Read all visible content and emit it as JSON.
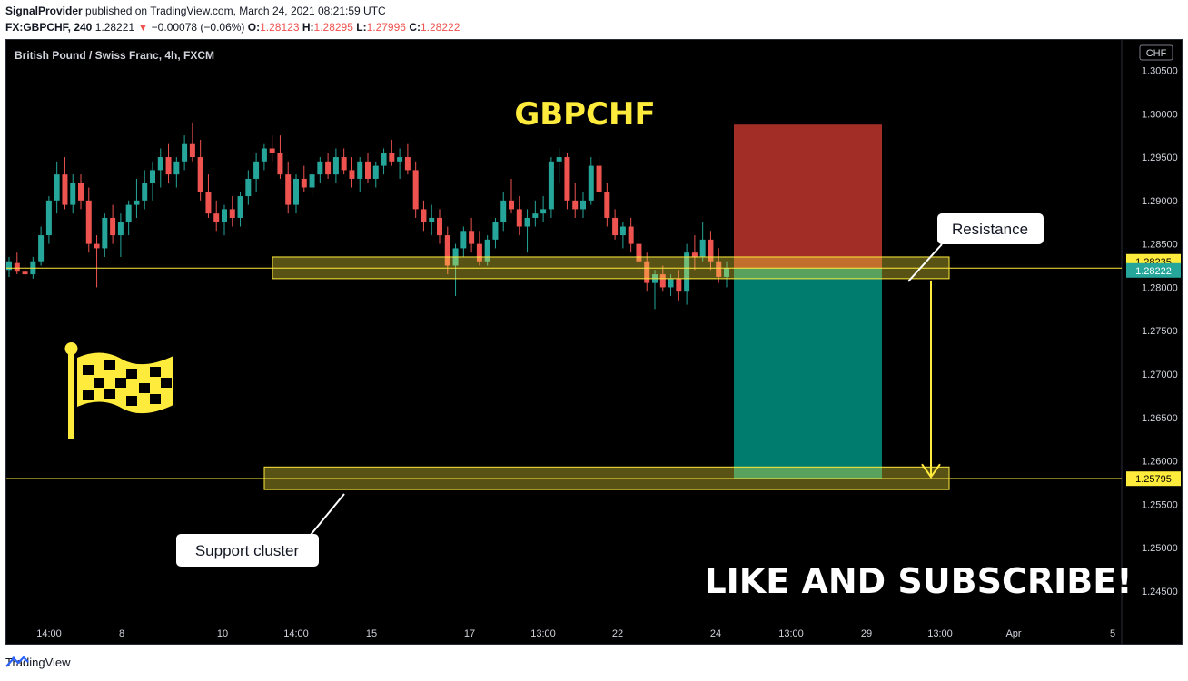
{
  "header": {
    "author": "SignalProvider",
    "published_text": "published on TradingView.com, March 24, 2021 08:21:59 UTC",
    "symbol": "FX:GBPCHF, 240",
    "last": "1.28221",
    "change_arrow": "▼",
    "change": "−0.00078 (−0.06%)",
    "o_label": "O:",
    "o_value": "1.28123",
    "h_label": "H:",
    "h_value": "1.28295",
    "l_label": "L:",
    "l_value": "1.27996",
    "c_label": "C:",
    "c_value": "1.28222"
  },
  "chart_data": {
    "type": "candlestick",
    "instrument_label": "British Pound / Swiss Franc, 4h, FXCM",
    "title": "GBPCHF",
    "currency_badge": "CHF",
    "ylim": [
      1.2405,
      1.3085
    ],
    "y_ticks": [
      "1.30500",
      "1.30000",
      "1.29500",
      "1.29000",
      "1.28500",
      "1.28000",
      "1.27500",
      "1.27000",
      "1.26500",
      "1.26000",
      "1.25500",
      "1.25000",
      "1.24500"
    ],
    "x_ticks": [
      "14:00",
      "8",
      "10",
      "14:00",
      "15",
      "17",
      "13:00",
      "22",
      "24",
      "13:00",
      "29",
      "13:00",
      "Apr",
      "5"
    ],
    "price_labels": {
      "resistance_top": "1.28235",
      "current": "1.28222",
      "target": "1.25795"
    },
    "candles_ohlc": [
      [
        1.282,
        1.2835,
        1.2812,
        1.283
      ],
      [
        1.2828,
        1.284,
        1.2815,
        1.2818
      ],
      [
        1.2818,
        1.283,
        1.2808,
        1.2815
      ],
      [
        1.2815,
        1.2835,
        1.281,
        1.283
      ],
      [
        1.283,
        1.287,
        1.2825,
        1.286
      ],
      [
        1.286,
        1.2905,
        1.285,
        1.29
      ],
      [
        1.29,
        1.2945,
        1.2885,
        1.293
      ],
      [
        1.293,
        1.295,
        1.289,
        1.2895
      ],
      [
        1.2895,
        1.293,
        1.2885,
        1.292
      ],
      [
        1.292,
        1.293,
        1.289,
        1.29
      ],
      [
        1.29,
        1.2915,
        1.284,
        1.285
      ],
      [
        1.285,
        1.286,
        1.28,
        1.2845
      ],
      [
        1.2845,
        1.2885,
        1.2835,
        1.288
      ],
      [
        1.288,
        1.2895,
        1.285,
        1.286
      ],
      [
        1.286,
        1.2885,
        1.2835,
        1.2875
      ],
      [
        1.2875,
        1.29,
        1.286,
        1.2895
      ],
      [
        1.2895,
        1.2925,
        1.288,
        1.29
      ],
      [
        1.29,
        1.2935,
        1.289,
        1.292
      ],
      [
        1.292,
        1.2945,
        1.29,
        1.2935
      ],
      [
        1.2935,
        1.296,
        1.2915,
        1.295
      ],
      [
        1.295,
        1.2965,
        1.292,
        1.293
      ],
      [
        1.293,
        1.295,
        1.2915,
        1.2945
      ],
      [
        1.2945,
        1.2975,
        1.2935,
        1.2965
      ],
      [
        1.2965,
        1.299,
        1.2945,
        1.295
      ],
      [
        1.295,
        1.297,
        1.29,
        1.291
      ],
      [
        1.291,
        1.293,
        1.288,
        1.2885
      ],
      [
        1.2885,
        1.29,
        1.2865,
        1.2875
      ],
      [
        1.2875,
        1.2895,
        1.286,
        1.289
      ],
      [
        1.289,
        1.2905,
        1.287,
        1.288
      ],
      [
        1.288,
        1.291,
        1.287,
        1.2905
      ],
      [
        1.2905,
        1.2935,
        1.2895,
        1.2925
      ],
      [
        1.2925,
        1.2955,
        1.291,
        1.2945
      ],
      [
        1.2945,
        1.2965,
        1.2935,
        1.296
      ],
      [
        1.296,
        1.2975,
        1.2945,
        1.2955
      ],
      [
        1.2955,
        1.2975,
        1.2925,
        1.293
      ],
      [
        1.293,
        1.2945,
        1.2885,
        1.2895
      ],
      [
        1.2895,
        1.293,
        1.2885,
        1.2925
      ],
      [
        1.2925,
        1.294,
        1.291,
        1.2915
      ],
      [
        1.2915,
        1.2935,
        1.2905,
        1.293
      ],
      [
        1.293,
        1.295,
        1.292,
        1.2945
      ],
      [
        1.2945,
        1.2955,
        1.2925,
        1.293
      ],
      [
        1.293,
        1.296,
        1.292,
        1.295
      ],
      [
        1.295,
        1.296,
        1.293,
        1.2935
      ],
      [
        1.2935,
        1.295,
        1.2915,
        1.2925
      ],
      [
        1.2925,
        1.295,
        1.291,
        1.2945
      ],
      [
        1.2945,
        1.2955,
        1.292,
        1.2925
      ],
      [
        1.2925,
        1.2945,
        1.2915,
        1.294
      ],
      [
        1.294,
        1.296,
        1.293,
        1.2955
      ],
      [
        1.2955,
        1.297,
        1.294,
        1.2945
      ],
      [
        1.2945,
        1.296,
        1.2925,
        1.295
      ],
      [
        1.295,
        1.2965,
        1.293,
        1.2935
      ],
      [
        1.2935,
        1.2945,
        1.288,
        1.289
      ],
      [
        1.289,
        1.29,
        1.2865,
        1.2875
      ],
      [
        1.2875,
        1.2895,
        1.286,
        1.288
      ],
      [
        1.288,
        1.289,
        1.285,
        1.286
      ],
      [
        1.286,
        1.287,
        1.2815,
        1.2825
      ],
      [
        1.2825,
        1.285,
        1.279,
        1.2845
      ],
      [
        1.2845,
        1.287,
        1.2835,
        1.2865
      ],
      [
        1.2865,
        1.288,
        1.284,
        1.285
      ],
      [
        1.285,
        1.2865,
        1.2825,
        1.283
      ],
      [
        1.283,
        1.286,
        1.2825,
        1.2855
      ],
      [
        1.2855,
        1.288,
        1.2845,
        1.2875
      ],
      [
        1.2875,
        1.291,
        1.2865,
        1.29
      ],
      [
        1.29,
        1.2925,
        1.2885,
        1.289
      ],
      [
        1.289,
        1.2905,
        1.286,
        1.287
      ],
      [
        1.287,
        1.289,
        1.284,
        1.288
      ],
      [
        1.288,
        1.29,
        1.287,
        1.2885
      ],
      [
        1.2885,
        1.2905,
        1.2875,
        1.289
      ],
      [
        1.289,
        1.295,
        1.288,
        1.2945
      ],
      [
        1.2945,
        1.296,
        1.292,
        1.295
      ],
      [
        1.295,
        1.2955,
        1.289,
        1.29
      ],
      [
        1.29,
        1.292,
        1.288,
        1.289
      ],
      [
        1.289,
        1.291,
        1.288,
        1.29
      ],
      [
        1.29,
        1.295,
        1.2895,
        1.294
      ],
      [
        1.294,
        1.295,
        1.29,
        1.291
      ],
      [
        1.291,
        1.292,
        1.287,
        1.288
      ],
      [
        1.288,
        1.289,
        1.2855,
        1.286
      ],
      [
        1.286,
        1.2875,
        1.2845,
        1.287
      ],
      [
        1.287,
        1.288,
        1.284,
        1.285
      ],
      [
        1.285,
        1.2865,
        1.282,
        1.283
      ],
      [
        1.283,
        1.284,
        1.2795,
        1.2805
      ],
      [
        1.2805,
        1.282,
        1.2775,
        1.2815
      ],
      [
        1.2815,
        1.2825,
        1.2795,
        1.28
      ],
      [
        1.28,
        1.2815,
        1.279,
        1.281
      ],
      [
        1.281,
        1.282,
        1.2785,
        1.2795
      ],
      [
        1.2795,
        1.285,
        1.278,
        1.284
      ],
      [
        1.284,
        1.286,
        1.282,
        1.2835
      ],
      [
        1.2835,
        1.2875,
        1.283,
        1.2855
      ],
      [
        1.2855,
        1.2865,
        1.282,
        1.283
      ],
      [
        1.283,
        1.2845,
        1.2805,
        1.2812
      ],
      [
        1.2812,
        1.283,
        1.28,
        1.2822
      ]
    ],
    "resistance_zone": [
      1.281,
      1.2835
    ],
    "support_zone": [
      1.2567,
      1.2593
    ],
    "current_price": 1.28222,
    "target_price": 1.25795,
    "position": {
      "entry": 1.28222,
      "stop": 1.29875,
      "target": 1.25795
    },
    "annotations": [
      "Resistance",
      "Support cluster",
      "LIKE AND SUBSCRIBE!"
    ],
    "colors": {
      "up": "#26a69a",
      "down": "#ef5350",
      "zone": "#ffeb3b",
      "stop": "#b2322a",
      "profit": "#00897b",
      "title": "#ffeb3b"
    }
  },
  "footer": {
    "brand": "TradingView"
  }
}
